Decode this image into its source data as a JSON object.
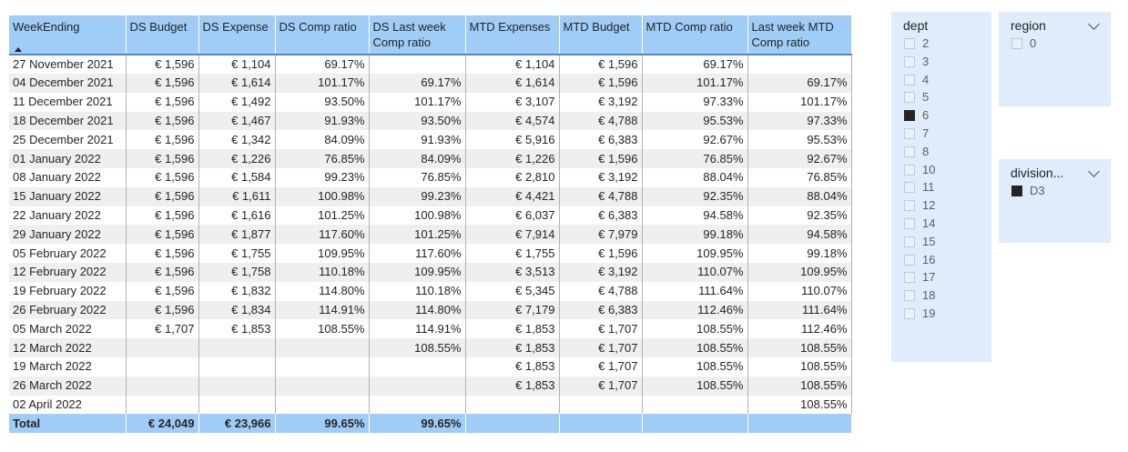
{
  "table": {
    "columns": [
      "WeekEnding",
      "DS Budget",
      "DS Expense",
      "DS Comp ratio",
      "DS Last week Comp ratio",
      "MTD Expenses",
      "MTD Budget",
      "MTD Comp ratio",
      "Last week MTD Comp ratio"
    ],
    "rows": [
      [
        "27 November 2021",
        "€ 1,596",
        "€ 1,104",
        "69.17%",
        "",
        "€ 1,104",
        "€ 1,596",
        "69.17%",
        ""
      ],
      [
        "04 December 2021",
        "€ 1,596",
        "€ 1,614",
        "101.17%",
        "69.17%",
        "€ 1,614",
        "€ 1,596",
        "101.17%",
        "69.17%"
      ],
      [
        "11 December 2021",
        "€ 1,596",
        "€ 1,492",
        "93.50%",
        "101.17%",
        "€ 3,107",
        "€ 3,192",
        "97.33%",
        "101.17%"
      ],
      [
        "18 December 2021",
        "€ 1,596",
        "€ 1,467",
        "91.93%",
        "93.50%",
        "€ 4,574",
        "€ 4,788",
        "95.53%",
        "97.33%"
      ],
      [
        "25 December 2021",
        "€ 1,596",
        "€ 1,342",
        "84.09%",
        "91.93%",
        "€ 5,916",
        "€ 6,383",
        "92.67%",
        "95.53%"
      ],
      [
        "01 January 2022",
        "€ 1,596",
        "€ 1,226",
        "76.85%",
        "84.09%",
        "€ 1,226",
        "€ 1,596",
        "76.85%",
        "92.67%"
      ],
      [
        "08 January 2022",
        "€ 1,596",
        "€ 1,584",
        "99.23%",
        "76.85%",
        "€ 2,810",
        "€ 3,192",
        "88.04%",
        "76.85%"
      ],
      [
        "15 January 2022",
        "€ 1,596",
        "€ 1,611",
        "100.98%",
        "99.23%",
        "€ 4,421",
        "€ 4,788",
        "92.35%",
        "88.04%"
      ],
      [
        "22 January 2022",
        "€ 1,596",
        "€ 1,616",
        "101.25%",
        "100.98%",
        "€ 6,037",
        "€ 6,383",
        "94.58%",
        "92.35%"
      ],
      [
        "29 January 2022",
        "€ 1,596",
        "€ 1,877",
        "117.60%",
        "101.25%",
        "€ 7,914",
        "€ 7,979",
        "99.18%",
        "94.58%"
      ],
      [
        "05 February 2022",
        "€ 1,596",
        "€ 1,755",
        "109.95%",
        "117.60%",
        "€ 1,755",
        "€ 1,596",
        "109.95%",
        "99.18%"
      ],
      [
        "12 February 2022",
        "€ 1,596",
        "€ 1,758",
        "110.18%",
        "109.95%",
        "€ 3,513",
        "€ 3,192",
        "110.07%",
        "109.95%"
      ],
      [
        "19 February 2022",
        "€ 1,596",
        "€ 1,832",
        "114.80%",
        "110.18%",
        "€ 5,345",
        "€ 4,788",
        "111.64%",
        "110.07%"
      ],
      [
        "26 February 2022",
        "€ 1,596",
        "€ 1,834",
        "114.91%",
        "114.80%",
        "€ 7,179",
        "€ 6,383",
        "112.46%",
        "111.64%"
      ],
      [
        "05 March 2022",
        "€ 1,707",
        "€ 1,853",
        "108.55%",
        "114.91%",
        "€ 1,853",
        "€ 1,707",
        "108.55%",
        "112.46%"
      ],
      [
        "12 March 2022",
        "",
        "",
        "",
        "108.55%",
        "€ 1,853",
        "€ 1,707",
        "108.55%",
        "108.55%"
      ],
      [
        "19 March 2022",
        "",
        "",
        "",
        "",
        "€ 1,853",
        "€ 1,707",
        "108.55%",
        "108.55%"
      ],
      [
        "26 March 2022",
        "",
        "",
        "",
        "",
        "€ 1,853",
        "€ 1,707",
        "108.55%",
        "108.55%"
      ],
      [
        "02 April 2022",
        "",
        "",
        "",
        "",
        "",
        "",
        "",
        "108.55%"
      ]
    ],
    "total": [
      "Total",
      "€ 24,049",
      "€ 23,966",
      "99.65%",
      "99.65%",
      "",
      "",
      "",
      ""
    ]
  },
  "slicers": {
    "dept": {
      "title": "dept",
      "items": [
        {
          "label": "2",
          "checked": false
        },
        {
          "label": "3",
          "checked": false
        },
        {
          "label": "4",
          "checked": false
        },
        {
          "label": "5",
          "checked": false
        },
        {
          "label": "6",
          "checked": true
        },
        {
          "label": "7",
          "checked": false
        },
        {
          "label": "8",
          "checked": false
        },
        {
          "label": "10",
          "checked": false
        },
        {
          "label": "11",
          "checked": false
        },
        {
          "label": "12",
          "checked": false
        },
        {
          "label": "14",
          "checked": false
        },
        {
          "label": "15",
          "checked": false
        },
        {
          "label": "16",
          "checked": false
        },
        {
          "label": "17",
          "checked": false
        },
        {
          "label": "18",
          "checked": false
        },
        {
          "label": "19",
          "checked": false
        }
      ]
    },
    "region": {
      "title": "region",
      "items": [
        {
          "label": "0",
          "checked": false
        }
      ]
    },
    "division": {
      "title": "division...",
      "items": [
        {
          "label": "D3",
          "checked": true
        }
      ]
    }
  }
}
